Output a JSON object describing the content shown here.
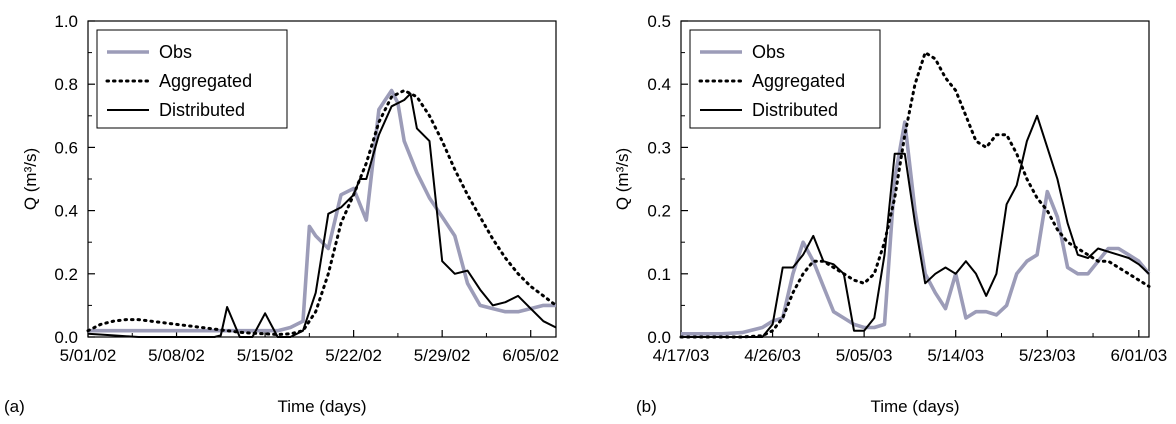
{
  "colors": {
    "obs": "#9c9cb8",
    "aggregated": "#000000",
    "distributed": "#000000",
    "axis": "#000000",
    "legend_border": "#000000"
  },
  "chart_data": [
    {
      "panel_label": "(a)",
      "type": "line",
      "xlabel": "Time (days)",
      "ylabel": "Q (m³/s)",
      "xlim": [
        0,
        37
      ],
      "ylim": [
        0,
        1.0
      ],
      "x_ticks": [
        0,
        7,
        14,
        21,
        28,
        35
      ],
      "x_tick_labels": [
        "5/01/02",
        "5/08/02",
        "5/15/02",
        "5/22/02",
        "5/29/02",
        "6/05/02"
      ],
      "y_ticks": [
        0,
        0.2,
        0.4,
        0.6,
        0.8,
        1.0
      ],
      "y_tick_labels": [
        "0.0",
        "0.2",
        "0.4",
        "0.6",
        "0.8",
        "1.0"
      ],
      "legend_position": "top-left",
      "series": [
        {
          "name": "Obs",
          "style": "obs",
          "x": [
            0,
            2,
            4,
            6,
            8,
            10,
            12,
            14,
            15,
            16,
            17,
            17.5,
            18,
            19,
            20,
            21,
            22,
            23,
            23.5,
            24,
            24.5,
            25,
            26,
            27,
            28,
            29,
            30,
            31,
            32,
            33,
            34,
            35,
            36,
            37
          ],
          "y": [
            0.02,
            0.02,
            0.02,
            0.02,
            0.02,
            0.02,
            0.02,
            0.02,
            0.02,
            0.03,
            0.05,
            0.35,
            0.32,
            0.28,
            0.45,
            0.47,
            0.37,
            0.72,
            0.75,
            0.78,
            0.74,
            0.62,
            0.52,
            0.44,
            0.38,
            0.32,
            0.17,
            0.1,
            0.09,
            0.08,
            0.08,
            0.09,
            0.1,
            0.1
          ]
        },
        {
          "name": "Aggregated",
          "style": "dotted",
          "x": [
            0,
            1,
            2,
            3,
            4,
            5,
            6,
            7,
            8,
            9,
            10,
            11,
            12,
            13,
            14,
            15,
            16,
            17,
            18,
            19,
            20,
            21,
            22,
            23,
            24,
            25,
            26,
            27,
            28,
            29,
            30,
            31,
            32,
            33,
            34,
            35,
            36,
            37
          ],
          "y": [
            0.02,
            0.04,
            0.05,
            0.055,
            0.055,
            0.05,
            0.045,
            0.04,
            0.035,
            0.03,
            0.025,
            0.02,
            0.015,
            0.012,
            0.01,
            0.008,
            0.01,
            0.02,
            0.08,
            0.2,
            0.36,
            0.45,
            0.55,
            0.68,
            0.76,
            0.78,
            0.76,
            0.7,
            0.62,
            0.53,
            0.45,
            0.38,
            0.31,
            0.25,
            0.2,
            0.16,
            0.13,
            0.1
          ]
        },
        {
          "name": "Distributed",
          "style": "solid",
          "x": [
            0,
            2,
            4,
            6,
            8,
            10,
            10.5,
            11,
            12,
            12.5,
            13,
            14,
            15,
            16,
            17,
            18,
            19,
            20,
            21,
            21.5,
            22,
            23,
            24,
            25,
            25.5,
            26,
            27,
            28,
            29,
            30,
            31,
            32,
            33,
            34,
            35,
            36,
            37
          ],
          "y": [
            0.01,
            0.005,
            0.0,
            0.0,
            0.0,
            0.0,
            0.005,
            0.095,
            0.0,
            0.0,
            0.0,
            0.075,
            0.0,
            0.0,
            0.02,
            0.14,
            0.39,
            0.41,
            0.45,
            0.5,
            0.5,
            0.64,
            0.73,
            0.75,
            0.77,
            0.66,
            0.62,
            0.24,
            0.2,
            0.21,
            0.15,
            0.1,
            0.11,
            0.13,
            0.09,
            0.05,
            0.03
          ]
        }
      ]
    },
    {
      "panel_label": "(b)",
      "type": "line",
      "xlabel": "Time (days)",
      "ylabel": "Q (m³/s)",
      "xlim": [
        0,
        46
      ],
      "ylim": [
        0,
        0.5
      ],
      "x_ticks": [
        0,
        9,
        18,
        27,
        36,
        45
      ],
      "x_tick_labels": [
        "4/17/03",
        "4/26/03",
        "5/05/03",
        "5/14/03",
        "5/23/03",
        "6/01/03"
      ],
      "y_ticks": [
        0,
        0.1,
        0.2,
        0.3,
        0.4,
        0.5
      ],
      "y_tick_labels": [
        "0.0",
        "0.1",
        "0.2",
        "0.3",
        "0.4",
        "0.5"
      ],
      "legend_position": "top-left",
      "series": [
        {
          "name": "Obs",
          "style": "obs",
          "x": [
            0,
            2,
            4,
            6,
            8,
            9,
            10,
            11,
            12,
            13,
            14,
            15,
            16,
            17,
            18,
            19,
            20,
            21,
            22,
            23,
            24,
            25,
            26,
            27,
            28,
            29,
            30,
            31,
            32,
            33,
            34,
            35,
            36,
            37,
            38,
            39,
            40,
            41,
            42,
            43,
            44,
            45,
            46
          ],
          "y": [
            0.005,
            0.005,
            0.005,
            0.007,
            0.015,
            0.025,
            0.03,
            0.1,
            0.15,
            0.12,
            0.08,
            0.04,
            0.03,
            0.02,
            0.015,
            0.015,
            0.02,
            0.25,
            0.34,
            0.2,
            0.1,
            0.07,
            0.045,
            0.1,
            0.03,
            0.04,
            0.04,
            0.035,
            0.05,
            0.1,
            0.12,
            0.13,
            0.23,
            0.19,
            0.11,
            0.1,
            0.1,
            0.12,
            0.14,
            0.14,
            0.13,
            0.12,
            0.1
          ]
        },
        {
          "name": "Aggregated",
          "style": "dotted",
          "x": [
            0,
            2,
            4,
            6,
            8,
            9,
            10,
            11,
            12,
            13,
            14,
            15,
            16,
            17,
            18,
            19,
            20,
            21,
            22,
            23,
            24,
            25,
            26,
            27,
            28,
            29,
            30,
            31,
            32,
            33,
            34,
            35,
            36,
            37,
            38,
            39,
            40,
            41,
            42,
            43,
            44,
            45,
            46
          ],
          "y": [
            0.0,
            0.0,
            0.0,
            0.0,
            0.002,
            0.01,
            0.03,
            0.07,
            0.1,
            0.12,
            0.12,
            0.11,
            0.1,
            0.09,
            0.085,
            0.1,
            0.15,
            0.22,
            0.32,
            0.4,
            0.45,
            0.44,
            0.41,
            0.39,
            0.35,
            0.31,
            0.3,
            0.32,
            0.32,
            0.29,
            0.25,
            0.22,
            0.2,
            0.17,
            0.15,
            0.14,
            0.13,
            0.12,
            0.12,
            0.11,
            0.1,
            0.09,
            0.08
          ]
        },
        {
          "name": "Distributed",
          "style": "solid",
          "x": [
            0,
            2,
            4,
            6,
            8,
            9,
            10,
            11,
            12,
            13,
            14,
            15,
            16,
            17,
            18,
            19,
            20,
            21,
            22,
            23,
            24,
            25,
            26,
            27,
            28,
            29,
            30,
            31,
            32,
            33,
            34,
            35,
            36,
            37,
            38,
            39,
            40,
            41,
            42,
            43,
            44,
            45,
            46
          ],
          "y": [
            0.0,
            0.0,
            0.0,
            0.0,
            0.0,
            0.02,
            0.11,
            0.11,
            0.13,
            0.16,
            0.12,
            0.115,
            0.1,
            0.01,
            0.01,
            0.03,
            0.13,
            0.29,
            0.29,
            0.18,
            0.085,
            0.1,
            0.11,
            0.1,
            0.12,
            0.1,
            0.065,
            0.1,
            0.21,
            0.24,
            0.31,
            0.35,
            0.3,
            0.25,
            0.18,
            0.13,
            0.125,
            0.14,
            0.135,
            0.13,
            0.125,
            0.115,
            0.1
          ]
        }
      ]
    }
  ]
}
